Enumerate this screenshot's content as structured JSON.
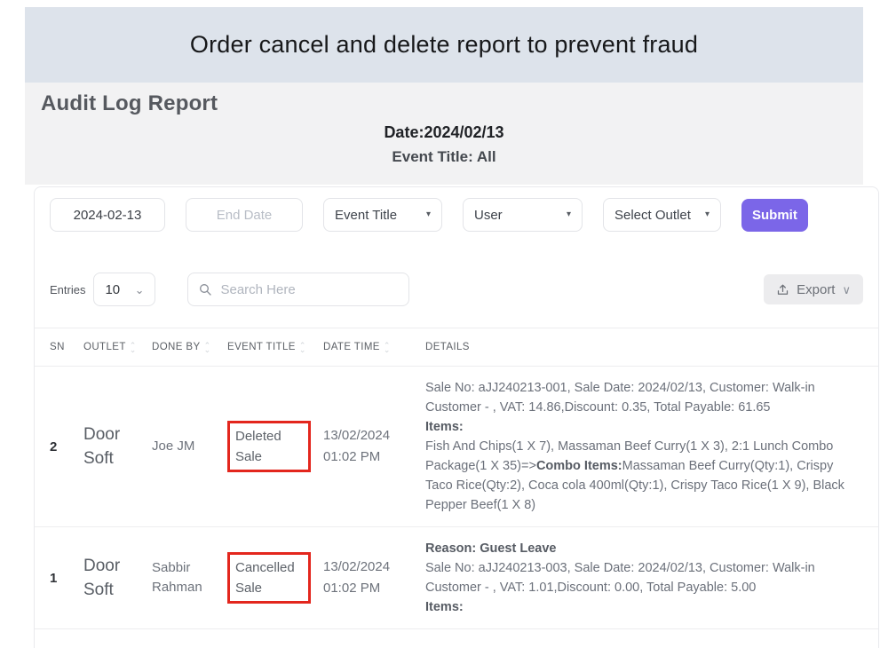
{
  "banner": {
    "text": "Order cancel and delete report to prevent fraud"
  },
  "header": {
    "title": "Audit Log Report",
    "date_line": "Date:2024/02/13",
    "event_line": "Event Title: All"
  },
  "filters": {
    "start_date_value": "2024-02-13",
    "end_date_placeholder": "End Date",
    "event_title_label": "Event Title",
    "user_label": "User",
    "outlet_label": "Select Outlet",
    "submit_label": "Submit",
    "caret": "▾"
  },
  "toolbar": {
    "entries_label": "Entries",
    "entries_value": "10",
    "entries_caret": "⌄",
    "search_placeholder": "Search Here",
    "export_label": "Export",
    "export_caret": "∨"
  },
  "colors": {
    "accent_purple": "#7b66e8",
    "highlight_red": "#e3261d",
    "banner_bg": "#dde3eb",
    "section_bg": "#f2f2f3"
  },
  "table": {
    "columns": [
      {
        "label": "SN",
        "sortable": false,
        "cls": "col-sn"
      },
      {
        "label": "OUTLET",
        "sortable": true,
        "cls": "col-outlet"
      },
      {
        "label": "DONE BY",
        "sortable": true,
        "cls": "col-doneby"
      },
      {
        "label": "EVENT TITLE",
        "sortable": true,
        "cls": "col-event"
      },
      {
        "label": "DATE TIME",
        "sortable": true,
        "cls": "col-date"
      },
      {
        "label": "DETAILS",
        "sortable": false,
        "cls": "col-details"
      }
    ],
    "rows": [
      {
        "sn": "2",
        "outlet": "Door Soft",
        "done_by": "Joe JM",
        "event_title": "Deleted Sale",
        "date_time": "13/02/2024 01:02 PM",
        "details": [
          [
            {
              "t": "Sale No: aJJ240213-001, Sale Date: 2024/02/13, Customer: Walk-in Customer - , VAT: 14.86,Discount: 0.35, Total Payable: 61.65",
              "b": false
            }
          ],
          [
            {
              "t": "Items:",
              "b": true
            }
          ],
          [
            {
              "t": "Fish And Chips(1 X 7), Massaman Beef Curry(1 X 3), 2:1 Lunch Combo Package(1 X 35)=>",
              "b": false
            },
            {
              "t": "Combo Items:",
              "b": true
            },
            {
              "t": "Massaman Beef Curry(Qty:1), Crispy Taco Rice(Qty:2), Coca cola 400ml(Qty:1), Crispy Taco Rice(1 X 9), Black Pepper Beef(1 X 8)",
              "b": false
            }
          ]
        ]
      },
      {
        "sn": "1",
        "outlet": "Door Soft",
        "done_by": "Sabbir Rahman",
        "event_title": "Cancelled Sale",
        "date_time": "13/02/2024 01:02 PM",
        "details": [
          [
            {
              "t": "Reason: Guest Leave",
              "b": true
            }
          ],
          [
            {
              "t": "Sale No: aJJ240213-003, Sale Date: 2024/02/13, Customer: Walk-in Customer - , VAT: 1.01,Discount: 0.00, Total Payable: 5.00",
              "b": false
            }
          ],
          [
            {
              "t": "Items:",
              "b": true
            }
          ]
        ]
      }
    ]
  }
}
